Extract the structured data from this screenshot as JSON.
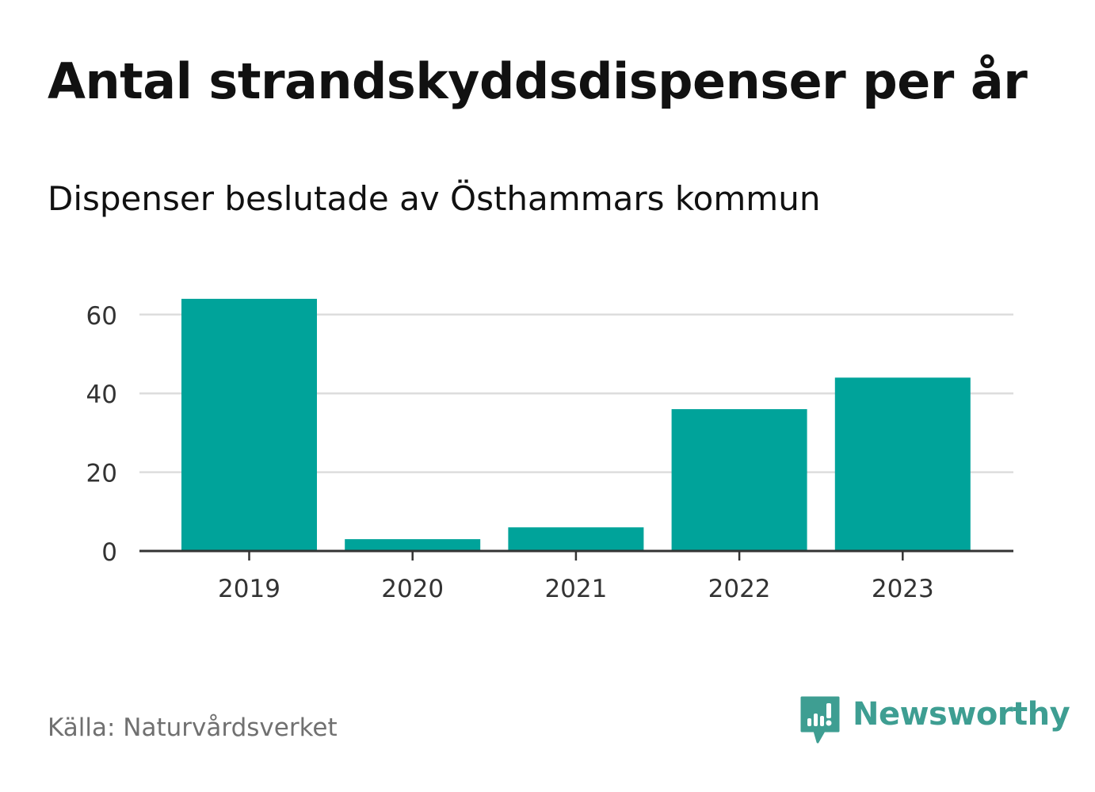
{
  "title": "Antal strandskyddsdispenser per år",
  "subtitle": "Dispenser beslutade av Östhammars kommun",
  "source": "Källa: Naturvårdsverket",
  "brand": {
    "name": "Newsworthy",
    "icon": "newsworthy-logo-icon",
    "color": "#3e9e92"
  },
  "chart_data": {
    "type": "bar",
    "title": "Antal strandskyddsdispenser per år",
    "subtitle": "Dispenser beslutade av Östhammars kommun",
    "categories": [
      "2019",
      "2020",
      "2021",
      "2022",
      "2023"
    ],
    "values": [
      64,
      3,
      6,
      36,
      44
    ],
    "xlabel": "",
    "ylabel": "",
    "ylim": [
      0,
      66
    ],
    "yticks": [
      0,
      20,
      40,
      60
    ],
    "grid": true,
    "bar_color": "#00a39a",
    "grid_color": "#dddddd",
    "axis_color": "#333333"
  }
}
